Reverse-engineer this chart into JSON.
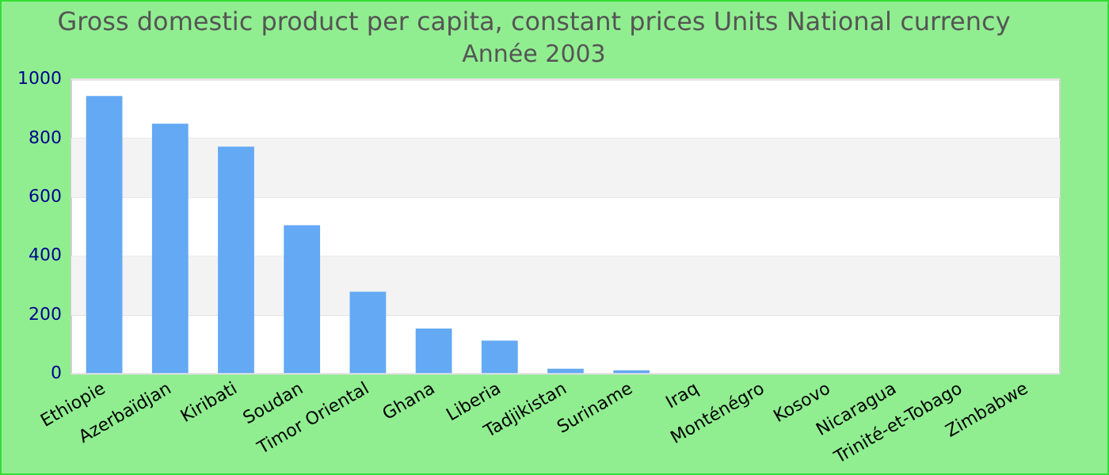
{
  "chart_data": {
    "type": "bar",
    "title": "Gross domestic product per capita, constant prices Units National currency",
    "subtitle": "Année 2003",
    "categories": [
      "Ethiopie",
      "Azerbaïdjan",
      "Kiribati",
      "Soudan",
      "Timor Oriental",
      "Ghana",
      "Liberia",
      "Tadjikistan",
      "Suriname",
      "Iraq",
      "Monténégro",
      "Kosovo",
      "Nicaragua",
      "Trinité-et-Tobago",
      "Zimbabwe"
    ],
    "values": [
      944,
      850,
      772,
      505,
      279,
      154,
      113,
      18,
      12,
      null,
      null,
      null,
      null,
      null,
      null
    ],
    "color": "#63a9f4",
    "ylim": [
      0,
      1000
    ],
    "yticks": [
      0,
      200,
      400,
      600,
      800,
      1000
    ],
    "grid": "y",
    "legend": false
  }
}
